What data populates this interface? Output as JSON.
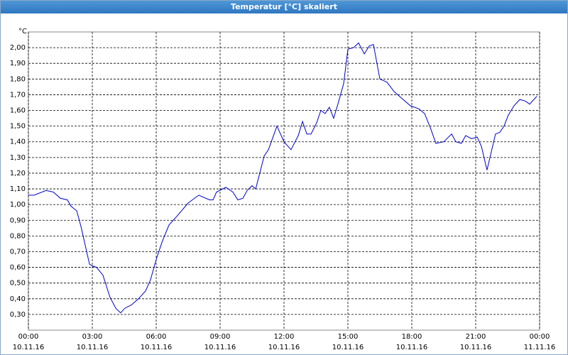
{
  "chart_data": {
    "type": "line",
    "title": "Temperatur [°C] skaliert",
    "y_unit": "°C",
    "x": [
      0,
      0.27,
      0.83,
      1.17,
      1.5,
      1.83,
      2.0,
      2.27,
      2.47,
      2.67,
      2.87,
      3.0,
      3.2,
      3.5,
      3.83,
      4.1,
      4.33,
      4.53,
      4.83,
      5.17,
      5.5,
      5.73,
      6.0,
      6.27,
      6.6,
      7.0,
      7.5,
      8.0,
      8.5,
      8.67,
      8.83,
      9.27,
      9.6,
      9.83,
      10.07,
      10.27,
      10.5,
      10.67,
      11.07,
      11.27,
      11.67,
      12.0,
      12.33,
      12.67,
      12.87,
      13.07,
      13.27,
      13.53,
      13.73,
      13.93,
      14.13,
      14.33,
      14.53,
      14.8,
      15.0,
      15.27,
      15.5,
      15.77,
      16.0,
      16.2,
      16.5,
      16.83,
      17.17,
      17.5,
      17.93,
      18.33,
      18.6,
      18.87,
      19.13,
      19.5,
      19.87,
      20.07,
      20.33,
      20.53,
      20.8,
      21.07,
      21.27,
      21.53,
      21.93,
      22.13,
      22.33,
      22.53,
      22.8,
      23.07,
      23.33,
      23.53,
      23.87
    ],
    "values": [
      1.06,
      1.06,
      1.09,
      1.08,
      1.04,
      1.03,
      0.99,
      0.96,
      0.86,
      0.74,
      0.62,
      0.61,
      0.6,
      0.55,
      0.41,
      0.34,
      0.31,
      0.34,
      0.36,
      0.4,
      0.45,
      0.52,
      0.65,
      0.76,
      0.87,
      0.93,
      1.01,
      1.06,
      1.03,
      1.03,
      1.08,
      1.11,
      1.08,
      1.03,
      1.04,
      1.09,
      1.12,
      1.1,
      1.31,
      1.35,
      1.5,
      1.4,
      1.35,
      1.44,
      1.53,
      1.45,
      1.45,
      1.52,
      1.6,
      1.58,
      1.62,
      1.55,
      1.64,
      1.77,
      1.99,
      2.0,
      2.03,
      1.96,
      2.01,
      2.02,
      1.8,
      1.78,
      1.72,
      1.68,
      1.63,
      1.61,
      1.58,
      1.49,
      1.39,
      1.4,
      1.45,
      1.4,
      1.39,
      1.44,
      1.42,
      1.43,
      1.37,
      1.22,
      1.45,
      1.46,
      1.5,
      1.57,
      1.63,
      1.67,
      1.66,
      1.64,
      1.69
    ],
    "color": "#0000cc",
    "xlim": [
      0,
      24
    ],
    "xticks": [
      {
        "value": 0,
        "label": "00:00"
      },
      {
        "value": 3,
        "label": "03:00"
      },
      {
        "value": 6,
        "label": "06:00"
      },
      {
        "value": 9,
        "label": "09:00"
      },
      {
        "value": 12,
        "label": "12:00"
      },
      {
        "value": 15,
        "label": "15:00"
      },
      {
        "value": 18,
        "label": "18:00"
      },
      {
        "value": 21,
        "label": "21:00"
      },
      {
        "value": 24,
        "label": "00:00"
      }
    ],
    "xtick_dates": [
      "10.11.16",
      "10.11.16",
      "10.11.16",
      "10.11.16",
      "10.11.16",
      "10.11.16",
      "10.11.16",
      "10.11.16",
      "11.11.16"
    ],
    "ylim": [
      0.2,
      2.1
    ],
    "yticks": [
      {
        "value": 0.3,
        "label": "0,30"
      },
      {
        "value": 0.4,
        "label": "0,40"
      },
      {
        "value": 0.5,
        "label": "0,50"
      },
      {
        "value": 0.6,
        "label": "0,60"
      },
      {
        "value": 0.7,
        "label": "0,70"
      },
      {
        "value": 0.8,
        "label": "0,80"
      },
      {
        "value": 0.9,
        "label": "0,90"
      },
      {
        "value": 1.0,
        "label": "1,00"
      },
      {
        "value": 1.1,
        "label": "1,10"
      },
      {
        "value": 1.2,
        "label": "1,20"
      },
      {
        "value": 1.3,
        "label": "1,30"
      },
      {
        "value": 1.4,
        "label": "1,40"
      },
      {
        "value": 1.5,
        "label": "1,50"
      },
      {
        "value": 1.6,
        "label": "1,60"
      },
      {
        "value": 1.7,
        "label": "1,70"
      },
      {
        "value": 1.8,
        "label": "1,80"
      },
      {
        "value": 1.9,
        "label": "1,90"
      },
      {
        "value": 2.0,
        "label": "2,00"
      }
    ],
    "grid": true
  }
}
